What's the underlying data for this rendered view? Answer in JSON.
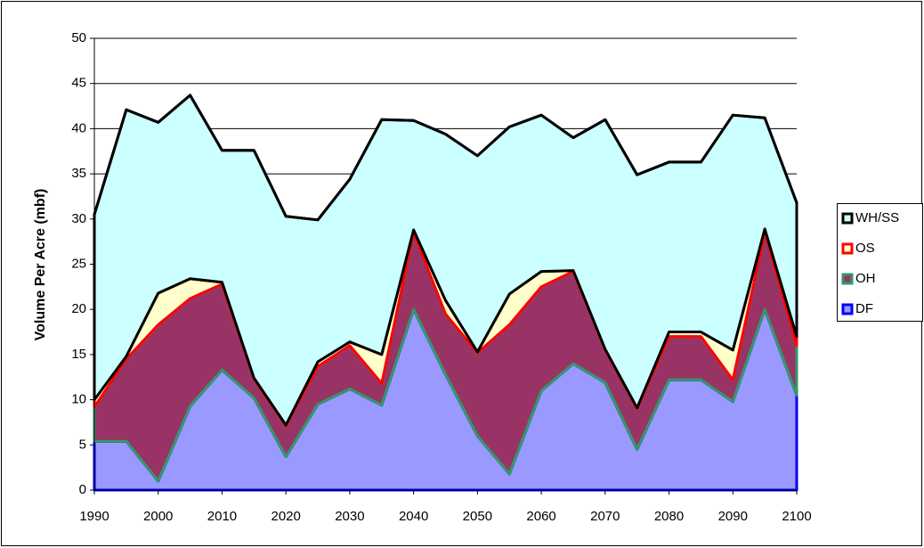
{
  "chart_data": {
    "type": "stacked_area",
    "y_label": "Volume Per Acre (mbf)",
    "x": [
      1990,
      1995,
      2000,
      2005,
      2010,
      2015,
      2020,
      2025,
      2030,
      2035,
      2040,
      2045,
      2050,
      2055,
      2060,
      2065,
      2070,
      2075,
      2080,
      2085,
      2090,
      2095,
      2100
    ],
    "xlim": [
      1990,
      2100
    ],
    "xticks": [
      1990,
      2000,
      2010,
      2020,
      2030,
      2040,
      2050,
      2060,
      2070,
      2080,
      2090,
      2100
    ],
    "ylim": [
      0,
      50
    ],
    "yticks": [
      0,
      5,
      10,
      15,
      20,
      25,
      30,
      35,
      40,
      45,
      50
    ],
    "grid": true,
    "legend": "right",
    "series": [
      {
        "name": "DF",
        "color": "#9999ff",
        "border": "#0000ff",
        "values": [
          5.4,
          5.4,
          1.0,
          9.3,
          13.3,
          10.2,
          3.7,
          9.5,
          11.2,
          9.4,
          20.0,
          12.8,
          6.0,
          1.8,
          11.0,
          14.0,
          11.9,
          4.5,
          12.2,
          12.2,
          9.8,
          20.0,
          10.5
        ]
      },
      {
        "name": "OH",
        "color": "#993366",
        "border": "#339966",
        "values": [
          3.8,
          9.1,
          17.3,
          11.9,
          9.5,
          2.1,
          3.4,
          4.2,
          4.8,
          2.4,
          8.5,
          6.7,
          9.2,
          16.5,
          11.5,
          10.2,
          3.6,
          4.5,
          4.8,
          4.8,
          2.4,
          8.5,
          5.5
        ]
      },
      {
        "name": "OS",
        "color": "#ffffcc",
        "border": "#ff0000",
        "values": [
          0.8,
          0.3,
          3.5,
          2.2,
          0.2,
          0.1,
          0.1,
          0.5,
          0.4,
          3.2,
          0.3,
          1.5,
          0.1,
          3.4,
          1.7,
          0.1,
          0.1,
          0.1,
          0.5,
          0.5,
          3.3,
          0.4,
          1.0
        ]
      },
      {
        "name": "WH/SS",
        "color": "#ccffff",
        "border": "#000000",
        "values": [
          20.5,
          27.3,
          18.9,
          20.3,
          14.6,
          25.2,
          23.1,
          15.7,
          18.0,
          26.0,
          12.1,
          18.4,
          21.7,
          18.5,
          17.3,
          14.7,
          25.4,
          25.8,
          18.8,
          18.8,
          26.0,
          12.3,
          14.8
        ]
      }
    ]
  }
}
